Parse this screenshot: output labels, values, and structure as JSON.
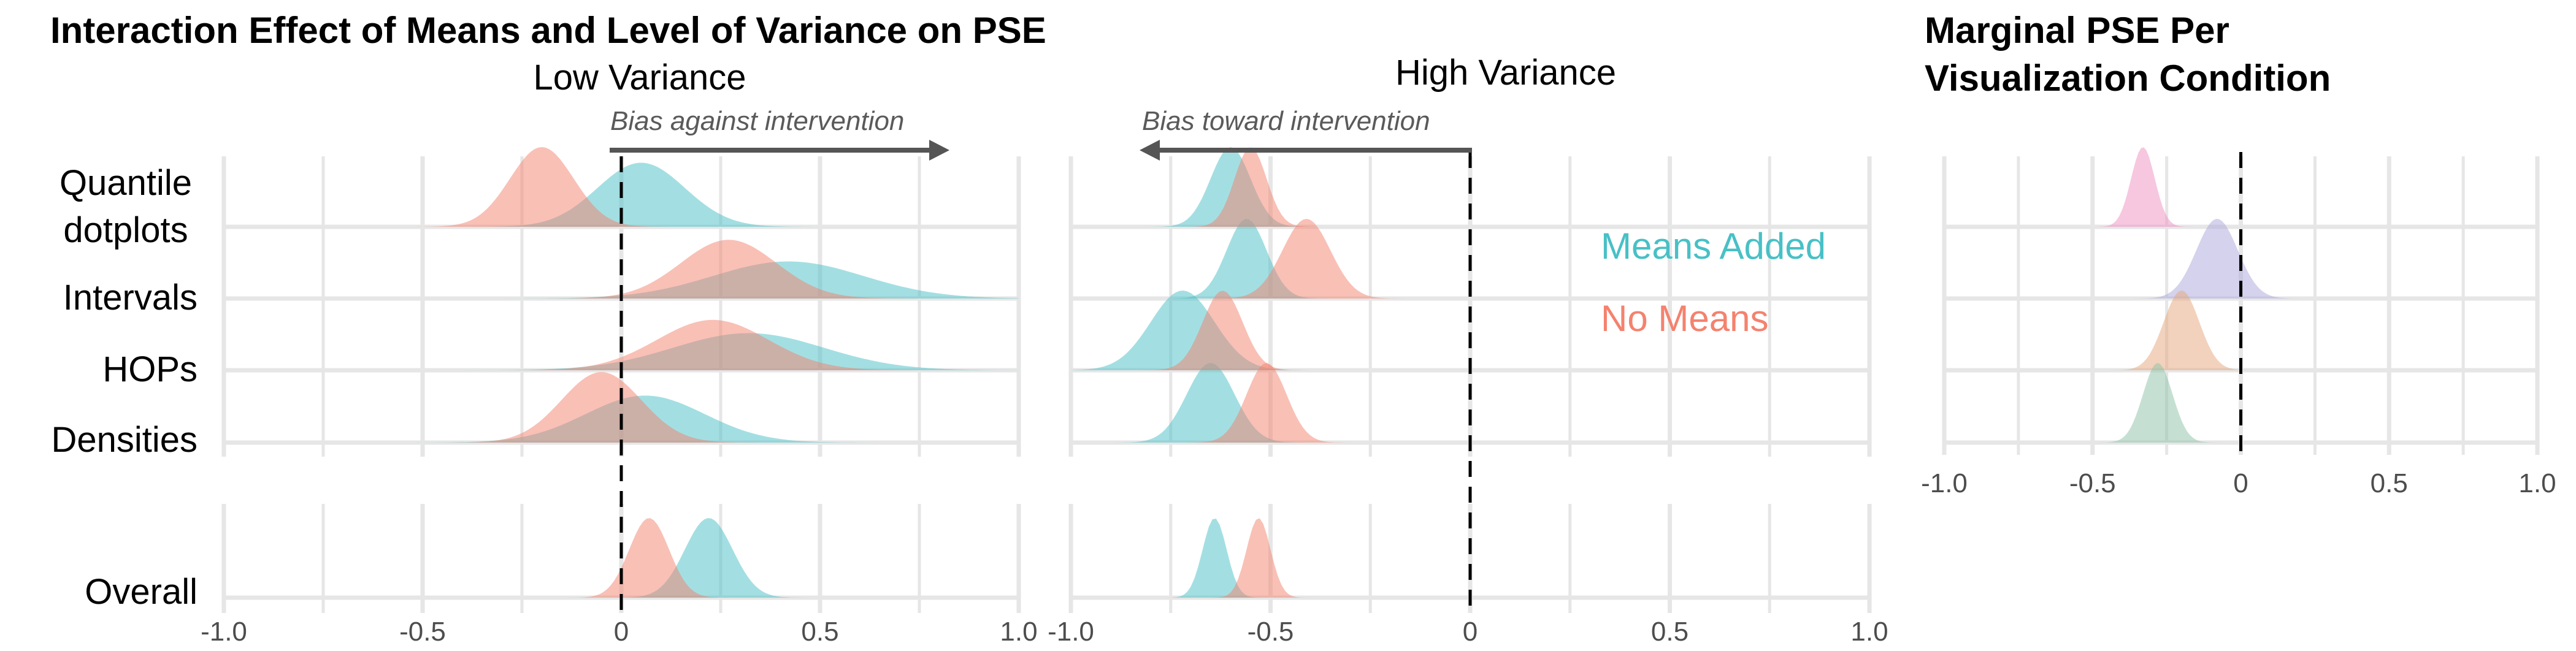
{
  "title": "Interaction Effect of Means and Level of Variance on PSE",
  "right_title_line1": "Marginal PSE Per",
  "right_title_line2": "Visualization Condition",
  "panel_low_title": "Low Variance",
  "panel_high_title": "High Variance",
  "annotation_low": "Bias against intervention",
  "annotation_high": "Bias toward intervention",
  "legend": {
    "means_added": "Means Added",
    "no_means": "No Means",
    "means_added_color": "#48C0C6",
    "no_means_color": "#F4826E"
  },
  "row_labels": {
    "quantile_line1": "Quantile",
    "quantile_line2": "dotplots",
    "intervals": "Intervals",
    "hops": "HOPs",
    "densities": "Densities",
    "overall": "Overall"
  },
  "tick_labels": [
    "-1.0",
    "-0.5",
    "0",
    "0.5",
    "1.0"
  ],
  "chart_data": [
    {
      "type": "area",
      "title": "Low Variance",
      "xlim": [
        -1.0,
        1.0
      ],
      "xticks": [
        -1.0,
        -0.5,
        0,
        0.5,
        1.0
      ],
      "reference_line": 0,
      "rows": [
        "Quantile dotplots",
        "Intervals",
        "HOPs",
        "Densities",
        "Overall"
      ],
      "series": [
        {
          "name": "Means Added",
          "color": "#48C0C6",
          "distributions": [
            {
              "row": "Quantile dotplots",
              "mean": 0.05,
              "sd": 0.11
            },
            {
              "row": "Intervals",
              "mean": 0.42,
              "sd": 0.19
            },
            {
              "row": "HOPs",
              "mean": 0.32,
              "sd": 0.19
            },
            {
              "row": "Densities",
              "mean": 0.06,
              "sd": 0.15
            },
            {
              "row": "Overall",
              "mean": 0.22,
              "sd": 0.06
            }
          ]
        },
        {
          "name": "No Means",
          "color": "#F4826E",
          "distributions": [
            {
              "row": "Quantile dotplots",
              "mean": -0.2,
              "sd": 0.08
            },
            {
              "row": "Intervals",
              "mean": 0.27,
              "sd": 0.12
            },
            {
              "row": "HOPs",
              "mean": 0.23,
              "sd": 0.14
            },
            {
              "row": "Densities",
              "mean": -0.05,
              "sd": 0.1
            },
            {
              "row": "Overall",
              "mean": 0.07,
              "sd": 0.05
            }
          ]
        }
      ]
    },
    {
      "type": "area",
      "title": "High Variance",
      "xlim": [
        -1.0,
        1.0
      ],
      "xticks": [
        -1.0,
        -0.5,
        0,
        0.5,
        1.0
      ],
      "reference_line": 0,
      "rows": [
        "Quantile dotplots",
        "Intervals",
        "HOPs",
        "Densities",
        "Overall"
      ],
      "series": [
        {
          "name": "Means Added",
          "color": "#48C0C6",
          "distributions": [
            {
              "row": "Quantile dotplots",
              "mean": -0.6,
              "sd": 0.05
            },
            {
              "row": "Intervals",
              "mean": -0.56,
              "sd": 0.05
            },
            {
              "row": "HOPs",
              "mean": -0.72,
              "sd": 0.08
            },
            {
              "row": "Densities",
              "mean": -0.65,
              "sd": 0.06
            },
            {
              "row": "Overall",
              "mean": -0.64,
              "sd": 0.03
            }
          ]
        },
        {
          "name": "No Means",
          "color": "#F4826E",
          "distributions": [
            {
              "row": "Quantile dotplots",
              "mean": -0.55,
              "sd": 0.04
            },
            {
              "row": "Intervals",
              "mean": -0.41,
              "sd": 0.06
            },
            {
              "row": "HOPs",
              "mean": -0.62,
              "sd": 0.05
            },
            {
              "row": "Densities",
              "mean": -0.51,
              "sd": 0.05
            },
            {
              "row": "Overall",
              "mean": -0.53,
              "sd": 0.03
            }
          ]
        }
      ]
    },
    {
      "type": "area",
      "title": "Marginal PSE Per Visualization Condition",
      "xlim": [
        -1.0,
        1.0
      ],
      "xticks": [
        -1.0,
        -0.5,
        0,
        0.5,
        1.0
      ],
      "reference_line": 0,
      "rows": [
        "Quantile dotplots",
        "Intervals",
        "HOPs",
        "Densities"
      ],
      "series": [
        {
          "row": "Quantile dotplots",
          "color": "#EE8FC0",
          "mean": -0.33,
          "sd": 0.04
        },
        {
          "row": "Intervals",
          "color": "#A9A6DA",
          "mean": -0.08,
          "sd": 0.07
        },
        {
          "row": "HOPs",
          "color": "#E6A57A",
          "mean": -0.2,
          "sd": 0.06
        },
        {
          "row": "Densities",
          "color": "#8CC2A8",
          "mean": -0.28,
          "sd": 0.05
        }
      ]
    }
  ]
}
